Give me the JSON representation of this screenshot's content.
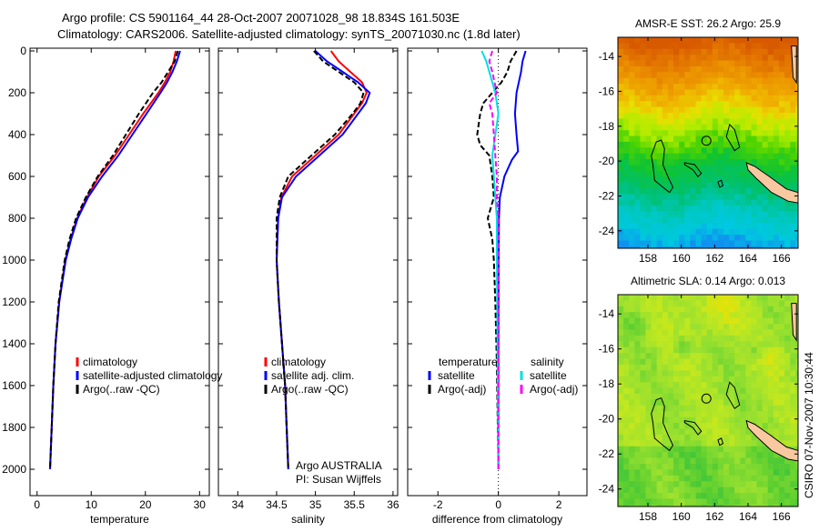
{
  "header": {
    "line1": "Argo profile: CS 5901164_44 28-Oct-2007 20071028_98 18.834S 161.503E",
    "line2": "Climatology: CARS2006. Satellite-adjusted climatology: synTS_20071030.nc (1.8d later)"
  },
  "footer_stamp": "CSIRO 07-Nov-2007 10:30:44",
  "credits": {
    "line1": "Argo AUSTRALIA",
    "line2": "PI: Susan Wijffels"
  },
  "chart_data": [
    {
      "type": "line",
      "xlabel": "temperature",
      "xlim": [
        -1.3,
        31.8
      ],
      "ylim": [
        2126,
        -13
      ],
      "xticks": [
        0,
        10,
        20,
        30
      ],
      "xtick_labels": [
        "0",
        "10",
        "20",
        "30"
      ],
      "yticks": [
        0,
        200,
        400,
        600,
        800,
        1000,
        1200,
        1400,
        1600,
        1800,
        2000
      ],
      "ytick_labels": [
        "0",
        "200",
        "400",
        "600",
        "800",
        "1000",
        "1200",
        "1400",
        "1600",
        "1800",
        "2000"
      ],
      "legend": [
        "climatology",
        "satellite-adjusted climatology",
        "Argo(..raw -QC)"
      ],
      "series": [
        {
          "name": "climatology",
          "color": "#ff0000",
          "dash": false,
          "depth": [
            0,
            50,
            100,
            150,
            200,
            300,
            400,
            500,
            600,
            700,
            800,
            900,
            1000,
            1200,
            1400,
            1600,
            1800,
            2000
          ],
          "values": [
            25.6,
            25.2,
            24.6,
            23.6,
            22.4,
            19.6,
            17.0,
            14.4,
            11.4,
            9.2,
            7.4,
            6.2,
            5.2,
            4.1,
            3.4,
            3.0,
            2.7,
            2.4
          ]
        },
        {
          "name": "satellite-adjusted climatology",
          "color": "#0000ff",
          "dash": false,
          "depth": [
            0,
            50,
            100,
            150,
            200,
            300,
            400,
            500,
            600,
            700,
            800,
            900,
            1000,
            1200,
            1400,
            1600,
            1800,
            2000
          ],
          "values": [
            26.4,
            25.8,
            25.0,
            24.0,
            22.8,
            20.2,
            17.6,
            15.0,
            12.0,
            9.4,
            7.5,
            6.3,
            5.3,
            4.1,
            3.4,
            3.0,
            2.7,
            2.4
          ]
        },
        {
          "name": "Argo(..raw -QC)",
          "color": "#000000",
          "dash": true,
          "depth": [
            0,
            50,
            100,
            150,
            200,
            300,
            400,
            500,
            600,
            700,
            800,
            900,
            1000,
            1200,
            1400,
            1600,
            1800,
            2000
          ],
          "values": [
            26.0,
            25.4,
            24.2,
            23.0,
            21.4,
            18.8,
            16.4,
            14.0,
            11.2,
            9.0,
            7.2,
            6.0,
            5.1,
            4.0,
            3.4,
            3.0,
            2.7,
            2.4
          ]
        }
      ]
    },
    {
      "type": "line",
      "xlabel": "salinity",
      "xlim": [
        33.75,
        36.06
      ],
      "ylim": [
        2126,
        -13
      ],
      "xticks": [
        34,
        34.5,
        35,
        35.5,
        36
      ],
      "xtick_labels": [
        "34",
        "34.5",
        "35",
        "35.5",
        "36"
      ],
      "yticks": [
        0,
        200,
        400,
        600,
        800,
        1000,
        1200,
        1400,
        1600,
        1800,
        2000
      ],
      "legend": [
        "climatology",
        "satellite adj. clim.",
        "Argo(..raw -QC)"
      ],
      "series": [
        {
          "name": "climatology",
          "color": "#ff0000",
          "dash": false,
          "depth": [
            0,
            50,
            100,
            150,
            200,
            250,
            300,
            400,
            500,
            600,
            700,
            800,
            1000,
            1200,
            1400,
            1600,
            1800,
            2000
          ],
          "values": [
            35.2,
            35.3,
            35.45,
            35.6,
            35.66,
            35.6,
            35.5,
            35.3,
            35.0,
            34.7,
            34.56,
            34.52,
            34.5,
            34.53,
            34.57,
            34.61,
            34.63,
            34.65
          ]
        },
        {
          "name": "satellite adj. clim.",
          "color": "#0000ff",
          "dash": false,
          "depth": [
            0,
            50,
            100,
            150,
            200,
            250,
            300,
            400,
            500,
            600,
            700,
            800,
            1000,
            1200,
            1400,
            1600,
            1800,
            2000
          ],
          "values": [
            35.0,
            35.15,
            35.35,
            35.55,
            35.7,
            35.65,
            35.55,
            35.35,
            35.05,
            34.75,
            34.57,
            34.52,
            34.5,
            34.53,
            34.57,
            34.61,
            34.63,
            34.65
          ]
        },
        {
          "name": "Argo(..raw -QC)",
          "color": "#000000",
          "dash": true,
          "depth": [
            0,
            50,
            100,
            150,
            200,
            250,
            300,
            400,
            500,
            600,
            700,
            800,
            1000,
            1200,
            1400,
            1600,
            1800,
            2000
          ],
          "values": [
            34.98,
            35.1,
            35.3,
            35.5,
            35.62,
            35.58,
            35.48,
            35.25,
            34.95,
            34.65,
            34.54,
            34.5,
            34.5,
            34.53,
            34.57,
            34.61,
            34.63,
            34.65
          ]
        }
      ]
    },
    {
      "type": "line",
      "xlabel": "difference from climatology",
      "xlim": [
        -3.0,
        2.93
      ],
      "ylim": [
        2126,
        -13
      ],
      "xticks": [
        -2,
        0,
        2
      ],
      "xtick_labels": [
        "-2",
        "0",
        "2"
      ],
      "yticks": [
        0,
        200,
        400,
        600,
        800,
        1000,
        1200,
        1400,
        1600,
        1800,
        2000
      ],
      "legend_temperature": {
        "heading": "temperature",
        "items": [
          "satellite",
          "Argo(-adj)"
        ]
      },
      "legend_salinity": {
        "heading": "salinity",
        "items": [
          "satellite",
          "Argo(-adj)"
        ]
      },
      "series": [
        {
          "name": "temperature satellite",
          "color": "#0000ff",
          "dash": false,
          "depth": [
            0,
            50,
            100,
            200,
            300,
            400,
            480,
            520,
            600,
            700,
            800,
            1000,
            1500,
            2000
          ],
          "values": [
            0.9,
            0.8,
            0.75,
            0.6,
            0.55,
            0.6,
            0.65,
            0.45,
            0.2,
            0.05,
            0.02,
            0.01,
            0.0,
            0.0
          ]
        },
        {
          "name": "temperature Argo(-adj)",
          "color": "#000000",
          "dash": true,
          "depth": [
            0,
            50,
            100,
            150,
            200,
            250,
            300,
            400,
            450,
            500,
            600,
            700,
            800,
            900,
            1000,
            1200,
            1500,
            2000
          ],
          "values": [
            0.6,
            0.4,
            0.3,
            0.1,
            -0.2,
            -0.5,
            -0.6,
            -0.7,
            -0.6,
            -0.3,
            -0.2,
            -0.15,
            -0.35,
            -0.2,
            -0.15,
            -0.1,
            -0.05,
            0.0
          ]
        },
        {
          "name": "salinity satellite",
          "color": "#00e0e0",
          "dash": false,
          "depth": [
            0,
            50,
            100,
            200,
            300,
            400,
            500,
            600,
            700,
            800,
            1000,
            1400,
            2000
          ],
          "values": [
            -0.55,
            -0.4,
            -0.3,
            -0.1,
            0.0,
            -0.1,
            -0.2,
            -0.15,
            -0.1,
            -0.05,
            -0.05,
            -0.03,
            0.0
          ]
        },
        {
          "name": "salinity Argo(-adj)",
          "color": "#ff00ff",
          "dash": true,
          "depth": [
            0,
            50,
            100,
            200,
            250,
            300,
            400,
            500,
            600,
            700,
            800,
            1000,
            1500,
            2000
          ],
          "values": [
            -0.2,
            -0.3,
            -0.2,
            -0.05,
            -0.3,
            -0.2,
            -0.15,
            -0.1,
            -0.05,
            -0.05,
            0.0,
            0.0,
            0.0,
            0.0
          ]
        }
      ]
    },
    {
      "type": "heatmap",
      "title": "AMSR-E SST: 26.2  Argo: 25.9",
      "xlim": [
        156.2,
        167.0
      ],
      "ylim": [
        -12.9,
        -25.0
      ],
      "xticks": [
        158,
        160,
        162,
        164,
        166
      ],
      "xtick_labels": [
        "158",
        "160",
        "162",
        "164",
        "166"
      ],
      "yticks": [
        -14,
        -16,
        -18,
        -20,
        -22,
        -24
      ],
      "ytick_labels": [
        "-14",
        "-16",
        "-18",
        "-20",
        "-22",
        "-24"
      ],
      "float_position": {
        "lon": 161.503,
        "lat": -18.834
      }
    },
    {
      "type": "heatmap",
      "title": "Altimetric SLA: 0.14  Argo: 0.013",
      "xlim": [
        156.2,
        167.0
      ],
      "ylim": [
        -12.9,
        -25.0
      ],
      "xticks": [
        158,
        160,
        162,
        164,
        166
      ],
      "xtick_labels": [
        "158",
        "160",
        "162",
        "164",
        "166"
      ],
      "yticks": [
        -14,
        -16,
        -18,
        -20,
        -22,
        -24
      ],
      "ytick_labels": [
        "-14",
        "-16",
        "-18",
        "-20",
        "-22",
        "-24"
      ],
      "float_position": {
        "lon": 161.503,
        "lat": -18.834
      }
    }
  ]
}
